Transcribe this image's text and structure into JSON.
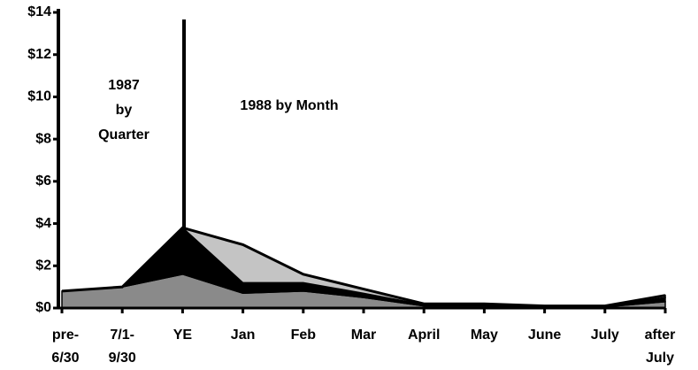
{
  "chart_data": {
    "type": "area",
    "categories": [
      "pre-\n6/30",
      "7/1-\n9/30",
      "YE",
      "Jan",
      "Feb",
      "Mar",
      "April",
      "May",
      "June",
      "July",
      "after\nJuly"
    ],
    "series": [
      {
        "color": "#8a8a8a",
        "values": [
          0.8,
          1.0,
          1.6,
          0.7,
          0.8,
          0.5,
          0.1,
          0.1,
          0.05,
          0.05,
          0.3
        ]
      },
      {
        "color": "#000000",
        "values": [
          0,
          0,
          2.2,
          0.5,
          0.4,
          0.2,
          0.05,
          0.05,
          0.03,
          0.03,
          0.2
        ]
      },
      {
        "color": "#c4c4c4",
        "values": [
          0,
          0,
          0,
          1.8,
          0.4,
          0.2,
          0.05,
          0.05,
          0.02,
          0.02,
          0.1
        ]
      }
    ],
    "annotations": [
      "1987\nby\nQuarter",
      "1988 by Month"
    ],
    "ylim": [
      0,
      14
    ],
    "yticks": [
      {
        "value": 0,
        "label": "$0"
      },
      {
        "value": 2,
        "label": "$2"
      },
      {
        "value": 4,
        "label": "$4"
      },
      {
        "value": 6,
        "label": "$6"
      },
      {
        "value": 8,
        "label": "$8"
      },
      {
        "value": 10,
        "label": "$10"
      },
      {
        "value": 12,
        "label": "$12"
      },
      {
        "value": 14,
        "label": "$14"
      }
    ]
  }
}
